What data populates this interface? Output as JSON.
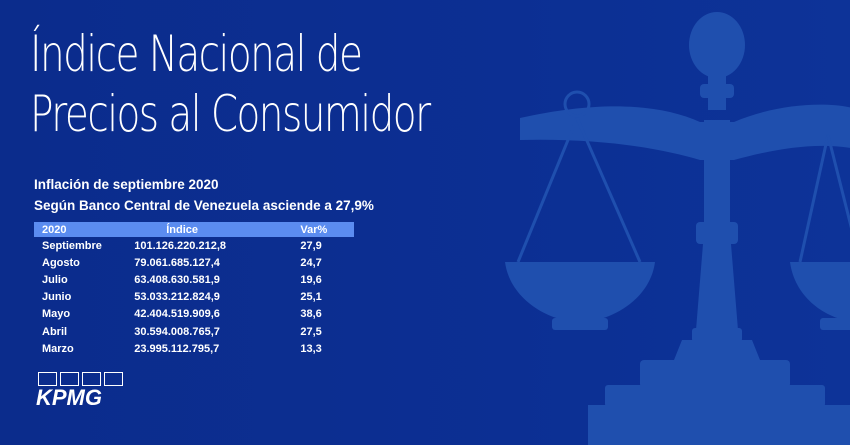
{
  "title": {
    "line1": "Índice Nacional de",
    "line2": "Precios al Consumidor"
  },
  "subtitle": {
    "line1": "Inflación de septiembre 2020",
    "line2": "Según Banco Central de Venezuela asciende a 27,9%"
  },
  "table": {
    "headers": [
      "2020",
      "Índice",
      "Var%"
    ],
    "rows": [
      {
        "month": "Septiembre",
        "index": "101.126.220.212,8",
        "var": "27,9"
      },
      {
        "month": "Agosto",
        "index": "79.061.685.127,4",
        "var": "24,7"
      },
      {
        "month": "Julio",
        "index": "63.408.630.581,9",
        "var": "19,6"
      },
      {
        "month": "Junio",
        "index": "53.033.212.824,9",
        "var": "25,1"
      },
      {
        "month": "Mayo",
        "index": "42.404.519.909,6",
        "var": "38,6"
      },
      {
        "month": "Abril",
        "index": "30.594.008.765,7",
        "var": "27,5"
      },
      {
        "month": "Marzo",
        "index": "23.995.112.795,7",
        "var": "13,3"
      }
    ]
  },
  "logo": {
    "text": "KPMG"
  },
  "colors": {
    "background": "#0b2c8c",
    "header_row": "#5b8cf0",
    "scale_illustration": "#1f4fae"
  },
  "illustration": {
    "icon": "balance-scale-icon"
  }
}
